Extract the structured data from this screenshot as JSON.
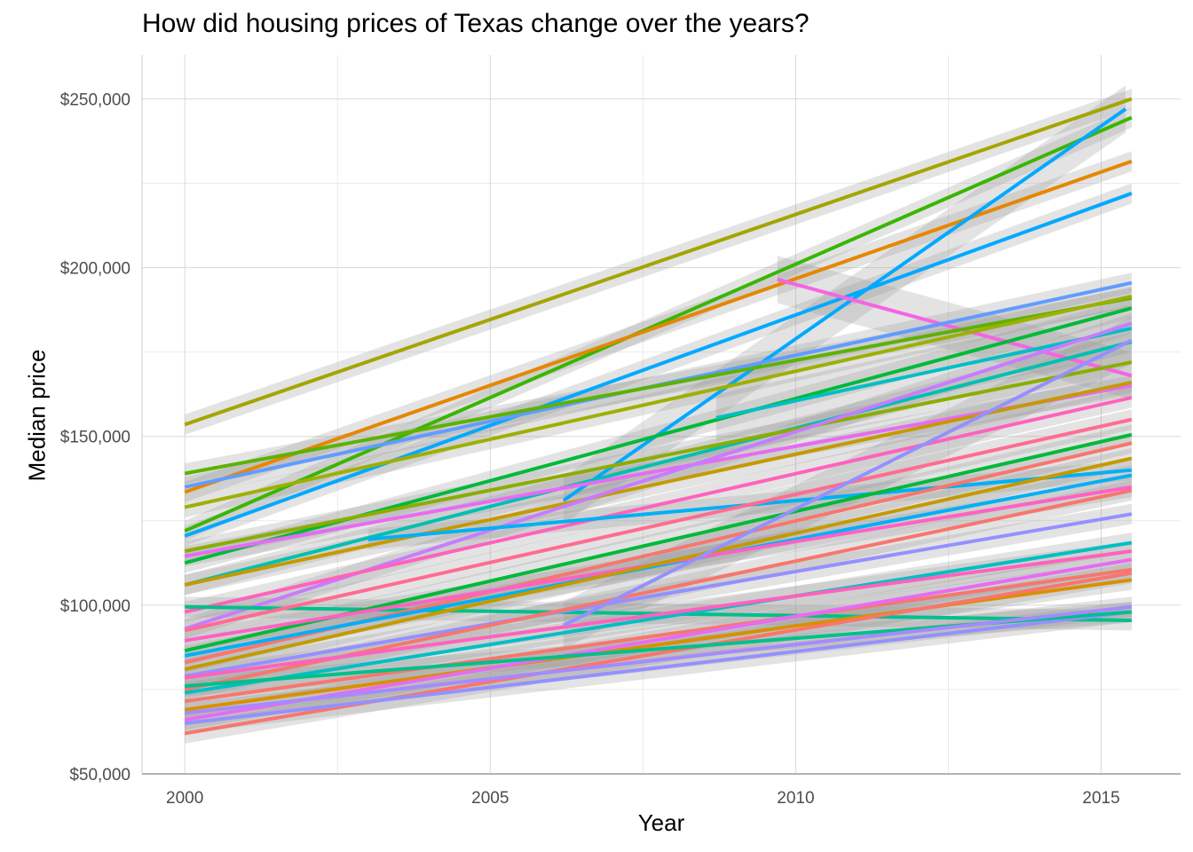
{
  "chart_data": {
    "type": "line",
    "title": "How did housing prices of Texas change over the years?",
    "xlabel": "Year",
    "ylabel": "Median price",
    "xlim": [
      1999.3,
      2016.3
    ],
    "ylim": [
      50000,
      263000
    ],
    "x_ticks": [
      2000,
      2005,
      2010,
      2015
    ],
    "y_ticks": [
      50000,
      100000,
      150000,
      200000,
      250000
    ],
    "y_tick_labels": [
      "$50,000",
      "$100,000",
      "$150,000",
      "$200,000",
      "$250,000"
    ],
    "x_tick_labels": [
      "2000",
      "2005",
      "2010",
      "2015"
    ],
    "grid": true,
    "confidence_band": true,
    "legend": "none",
    "series": [
      {
        "x": [
          2000,
          2015.5
        ],
        "y": [
          153500,
          250000
        ],
        "color": "#A3A500"
      },
      {
        "x": [
          2000,
          2015.5
        ],
        "y": [
          122000,
          244500
        ],
        "color": "#39B600"
      },
      {
        "x": [
          2000,
          2015.5
        ],
        "y": [
          133500,
          231500
        ],
        "color": "#E58700"
      },
      {
        "x": [
          2000,
          2015.5
        ],
        "y": [
          120500,
          222000
        ],
        "color": "#00A9FF"
      },
      {
        "x": [
          2006.2,
          2015.4
        ],
        "y": [
          131000,
          247000
        ],
        "color": "#00A9FF"
      },
      {
        "x": [
          2009.7,
          2015.5
        ],
        "y": [
          196500,
          168000
        ],
        "color": "#F564E3"
      },
      {
        "x": [
          2000,
          2015.5
        ],
        "y": [
          135000,
          195500
        ],
        "color": "#619CFF"
      },
      {
        "x": [
          2000,
          2015.5
        ],
        "y": [
          139000,
          191000
        ],
        "color": "#5BB300"
      },
      {
        "x": [
          2000,
          2015.5
        ],
        "y": [
          129000,
          191500
        ],
        "color": "#9DB000"
      },
      {
        "x": [
          2000,
          2015.5
        ],
        "y": [
          112500,
          188000
        ],
        "color": "#00BA38"
      },
      {
        "x": [
          2000,
          2015.5
        ],
        "y": [
          106000,
          178000
        ],
        "color": "#00C0AF"
      },
      {
        "x": [
          2000,
          2015.5
        ],
        "y": [
          116000,
          172000
        ],
        "color": "#8BAD00"
      },
      {
        "x": [
          2000,
          2015.5
        ],
        "y": [
          114500,
          165000
        ],
        "color": "#E76BF3"
      },
      {
        "x": [
          2000,
          2015.5
        ],
        "y": [
          106000,
          166000
        ],
        "color": "#C49A00"
      },
      {
        "x": [
          2008.7,
          2015.5
        ],
        "y": [
          155500,
          182000
        ],
        "color": "#00BFC4"
      },
      {
        "x": [
          2000,
          2015.5
        ],
        "y": [
          93000,
          183500
        ],
        "color": "#C77CFF"
      },
      {
        "x": [
          2000,
          2015.5
        ],
        "y": [
          98000,
          161500
        ],
        "color": "#FF62BC"
      },
      {
        "x": [
          2003,
          2015.5
        ],
        "y": [
          119500,
          140000
        ],
        "color": "#00B0F6"
      },
      {
        "x": [
          2000,
          2015.5
        ],
        "y": [
          99500,
          95500
        ],
        "color": "#00C08B"
      },
      {
        "x": [
          2000,
          2015.5
        ],
        "y": [
          92500,
          155000
        ],
        "color": "#FF6C91"
      },
      {
        "x": [
          2000,
          2015.5
        ],
        "y": [
          86500,
          150500
        ],
        "color": "#00BA38"
      },
      {
        "x": [
          2000,
          2015.5
        ],
        "y": [
          83000,
          148000
        ],
        "color": "#F8766D"
      },
      {
        "x": [
          2000,
          2015.5
        ],
        "y": [
          85000,
          138500
        ],
        "color": "#00B0F6"
      },
      {
        "x": [
          2000,
          2015.5
        ],
        "y": [
          89500,
          135000
        ],
        "color": "#FF61C3"
      },
      {
        "x": [
          2000,
          2015.5
        ],
        "y": [
          81000,
          143500
        ],
        "color": "#C49A00"
      },
      {
        "x": [
          2000,
          2015.5
        ],
        "y": [
          79000,
          127000
        ],
        "color": "#9590FF"
      },
      {
        "x": [
          2000,
          2015.5
        ],
        "y": [
          75000,
          134000
        ],
        "color": "#F8766D"
      },
      {
        "x": [
          2000,
          2015.5
        ],
        "y": [
          74000,
          118500
        ],
        "color": "#00BFC4"
      },
      {
        "x": [
          2000,
          2015.5
        ],
        "y": [
          78500,
          116000
        ],
        "color": "#FF62BC"
      },
      {
        "x": [
          2000,
          2015.5
        ],
        "y": [
          71500,
          110500
        ],
        "color": "#F8766D"
      },
      {
        "x": [
          2000,
          2015.5
        ],
        "y": [
          69000,
          107500
        ],
        "color": "#D89000"
      },
      {
        "x": [
          2000,
          2015.5
        ],
        "y": [
          66000,
          113500
        ],
        "color": "#E76BF3"
      },
      {
        "x": [
          2000,
          2015.5
        ],
        "y": [
          62000,
          109500
        ],
        "color": "#F8766D"
      },
      {
        "x": [
          2000,
          2015.5
        ],
        "y": [
          65000,
          98000
        ],
        "color": "#9590FF"
      },
      {
        "x": [
          2000,
          2015.5
        ],
        "y": [
          76000,
          98000
        ],
        "color": "#00C08B"
      },
      {
        "x": [
          2000,
          2015.5
        ],
        "y": [
          68000,
          99500
        ],
        "color": "#A58AFF"
      },
      {
        "x": [
          2006.2,
          2015.5
        ],
        "y": [
          94000,
          178500
        ],
        "color": "#9590FF"
      }
    ]
  }
}
